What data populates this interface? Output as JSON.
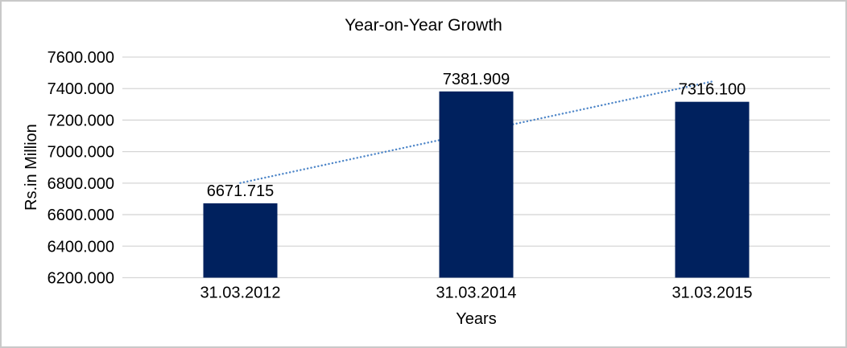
{
  "chart_data": {
    "type": "bar",
    "title": "Year-on-Year Growth",
    "xlabel": "Years",
    "ylabel": "Rs.in Million",
    "categories": [
      "31.03.2012",
      "31.03.2014",
      "31.03.2015"
    ],
    "values": [
      6671.715,
      7381.909,
      7316.1
    ],
    "value_labels": [
      "6671.715",
      "7381.909",
      "7316.100"
    ],
    "ylim": [
      6200,
      7600
    ],
    "ytick_step": 200,
    "ytick_labels": [
      "6200.000",
      "6400.000",
      "6600.000",
      "6800.000",
      "7000.000",
      "7200.000",
      "7400.000",
      "7600.000"
    ],
    "grid": true,
    "legend": "none",
    "trendline": {
      "type": "linear",
      "style": "dotted",
      "color": "#4e86c8",
      "start_value": 6801,
      "end_value": 7445
    },
    "colors": {
      "bar": "#00215e",
      "gridline": "#d6d6d6",
      "axis_line": "#d6d6d6",
      "text": "#000000",
      "border": "#c9c9c9"
    }
  }
}
